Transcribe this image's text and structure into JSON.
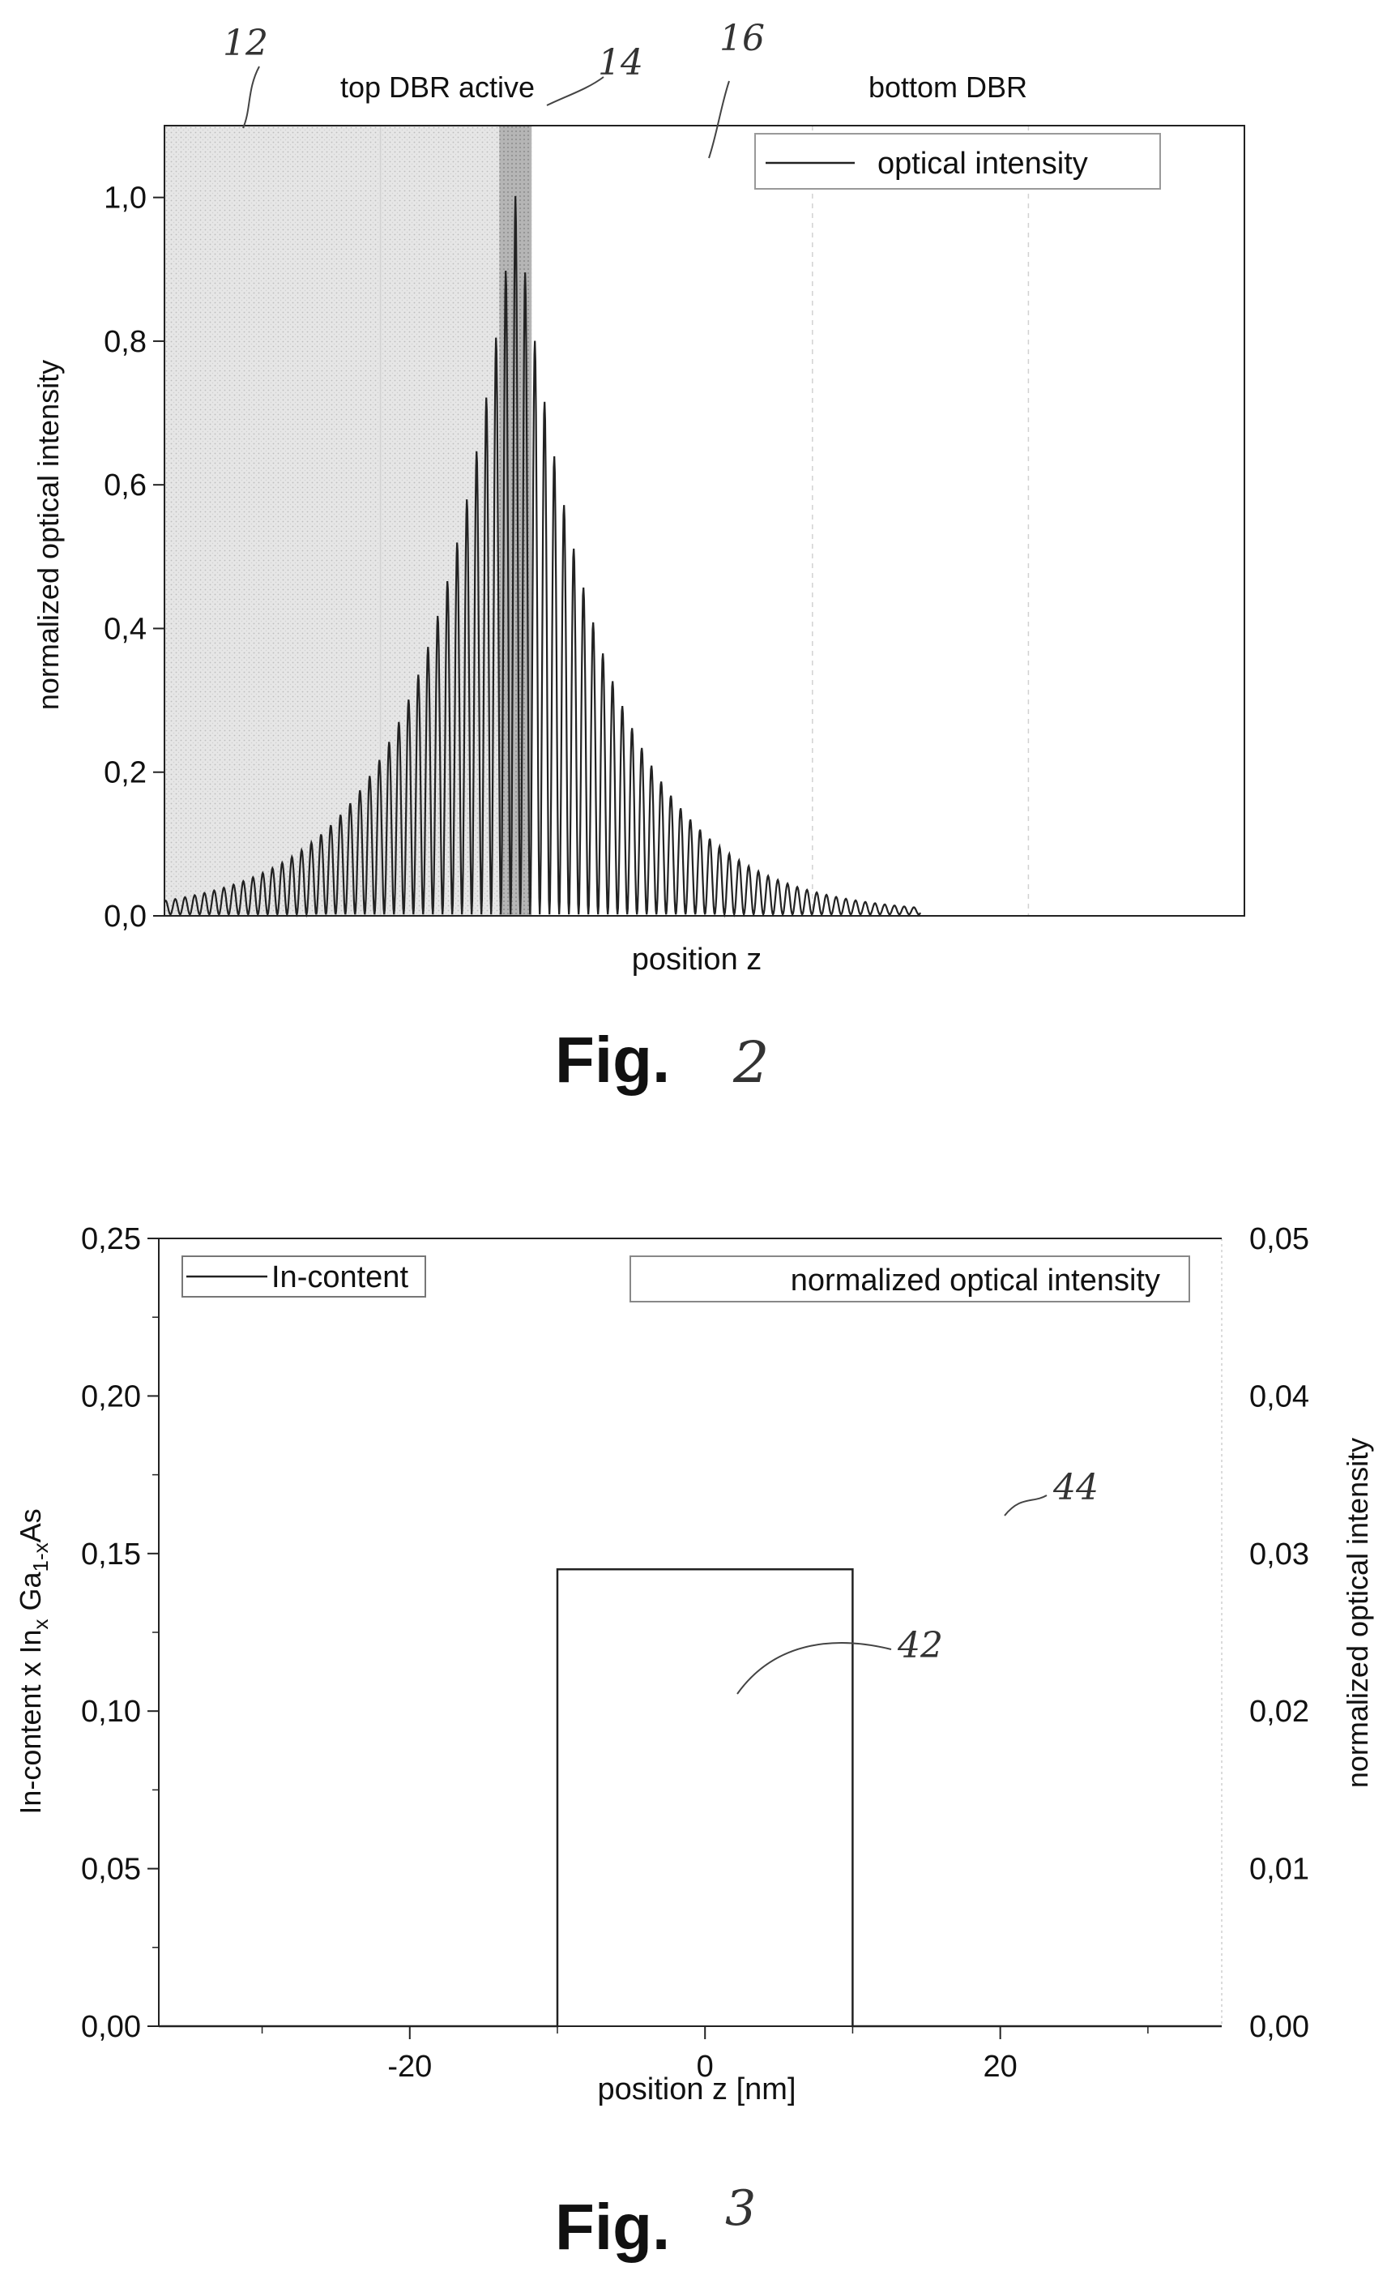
{
  "chart_data": [
    {
      "type": "line",
      "figure_label": "Fig.",
      "figure_number": "2",
      "xlabel": "position z",
      "ylabel": "normalized optical intensity",
      "ylim": [
        0,
        1.1
      ],
      "xlim": [
        0,
        100
      ],
      "x_ticks_shown": false,
      "y_ticks": [
        "0,0",
        "0,2",
        "0,4",
        "0,6",
        "0,8",
        "1,0"
      ],
      "grid": true,
      "legend": {
        "position": "top-right",
        "entries": [
          "optical intensity"
        ]
      },
      "region_labels": [
        "top DBR active",
        "bottom DBR"
      ],
      "reference_numerals": [
        "12",
        "14",
        "16"
      ],
      "regions": [
        {
          "numeral": "12",
          "x_start": 0,
          "x_end": 31,
          "shade": "light"
        },
        {
          "numeral": "14",
          "x_start": 31,
          "x_end": 34,
          "shade": "dark"
        },
        {
          "numeral": "16",
          "x_start": 34,
          "x_end": 100,
          "shade": "none"
        }
      ],
      "series": [
        {
          "envelope": {
            "peak_x": 32.5,
            "peak_value": 1.0,
            "decay_left": 8.2,
            "decay_right": 8.0
          },
          "peak_spacing": 0.9,
          "x_range": [
            0,
            70
          ]
        }
      ]
    },
    {
      "type": "line",
      "figure_label": "Fig.",
      "figure_number": "3",
      "xlabel": "position z [nm]",
      "ylabel": "In-content x In",
      "ylabel_sub_x": "x",
      "ylabel_ga": " Ga",
      "ylabel_sub_1x": "1-x",
      "ylabel_as": "As",
      "y2label": "normalized optical intensity",
      "xlim": [
        -37,
        35
      ],
      "ylim": [
        0,
        0.25
      ],
      "y2lim": [
        0,
        0.05
      ],
      "x_ticks": [
        "-20",
        "0",
        "20"
      ],
      "x_tick_values": [
        -20,
        0,
        20
      ],
      "y_ticks": [
        "0,00",
        "0,05",
        "0,10",
        "0,15",
        "0,20",
        "0,25"
      ],
      "y2_ticks": [
        "0,00",
        "0,01",
        "0,02",
        "0,03",
        "0,04",
        "0,05"
      ],
      "legend": {
        "entries": [
          "In-content",
          "normalized optical intensity"
        ]
      },
      "reference_numerals": [
        "42",
        "44"
      ],
      "series": [
        {
          "name": "In-content",
          "points": [
            [
              -37,
              0
            ],
            [
              -10,
              0
            ],
            [
              -10,
              0.145
            ],
            [
              10,
              0.145
            ],
            [
              10,
              0
            ],
            [
              35,
              0
            ]
          ]
        }
      ]
    }
  ]
}
